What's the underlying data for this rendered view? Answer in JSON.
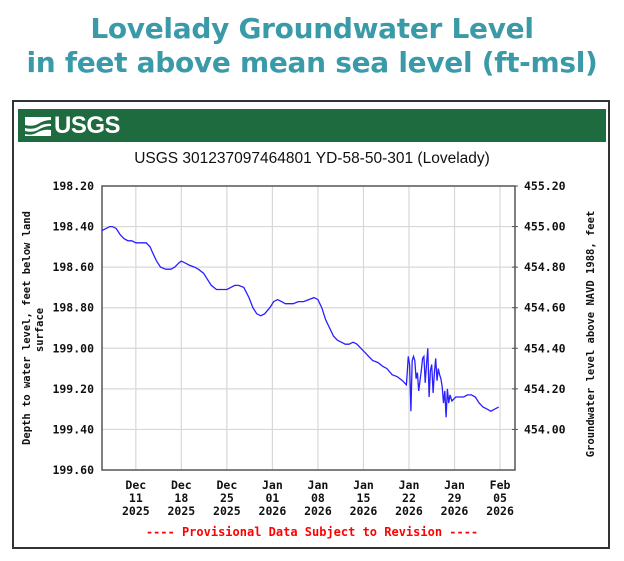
{
  "header": {
    "line1": "Lovelady Groundwater Level",
    "line2": "in feet above mean sea level (ft-msl)"
  },
  "banner": {
    "logo_text": "USGS",
    "color": "#1f6b40"
  },
  "colors": {
    "header": "#3a9aa8",
    "series": "#2a1fff",
    "provisional": "#ff0000",
    "grid": "#d8d8d8"
  },
  "chart_data": {
    "type": "line",
    "title": "USGS 301237097464801 YD-58-50-301 (Lovelady)",
    "ylabel": "Depth to water level, feet below land surface",
    "ylabel_lines": [
      "Depth to water level, feet below land",
      "surface"
    ],
    "y2label": "Groundwater level above NAVD 1988, feet",
    "ylim": [
      198.2,
      199.6
    ],
    "y_inverted": true,
    "yticks": [
      "198.20",
      "198.40",
      "198.60",
      "198.80",
      "199.00",
      "199.20",
      "199.40",
      "199.60"
    ],
    "y2lim": [
      455.2,
      453.8
    ],
    "y2ticks": [
      "455.20",
      "455.00",
      "454.80",
      "454.60",
      "454.40",
      "454.20",
      "454.00"
    ],
    "xlim_days_from_dec11": [
      -5.2,
      58.3
    ],
    "xticks": [
      {
        "line1": "Dec",
        "line2": "11",
        "line3": "2025",
        "day": 0
      },
      {
        "line1": "Dec",
        "line2": "18",
        "line3": "2025",
        "day": 7
      },
      {
        "line1": "Dec",
        "line2": "25",
        "line3": "2025",
        "day": 14
      },
      {
        "line1": "Jan",
        "line2": "01",
        "line3": "2026",
        "day": 21
      },
      {
        "line1": "Jan",
        "line2": "08",
        "line3": "2026",
        "day": 28
      },
      {
        "line1": "Jan",
        "line2": "15",
        "line3": "2026",
        "day": 35
      },
      {
        "line1": "Jan",
        "line2": "22",
        "line3": "2026",
        "day": 42
      },
      {
        "line1": "Jan",
        "line2": "29",
        "line3": "2026",
        "day": 49
      },
      {
        "line1": "Feb",
        "line2": "05",
        "line3": "2026",
        "day": 56
      }
    ],
    "grid": true,
    "footnote": "---- Provisional Data Subject to Revision ----",
    "series": [
      {
        "name": "Depth to water level",
        "x_days_from_dec11": [
          -5.2,
          -4.6,
          -4.0,
          -3.6,
          -3.0,
          -2.4,
          -1.8,
          -1.2,
          -0.6,
          0.0,
          0.8,
          1.6,
          2.2,
          2.6,
          3.2,
          3.8,
          4.6,
          5.4,
          6.0,
          6.6,
          7.0,
          7.6,
          8.2,
          9.0,
          9.6,
          10.4,
          11.0,
          11.6,
          12.4,
          13.2,
          14.0,
          14.6,
          15.2,
          15.8,
          16.6,
          17.4,
          18.0,
          18.6,
          19.2,
          19.8,
          20.6,
          21.2,
          21.8,
          22.4,
          23.0,
          23.6,
          24.2,
          25.0,
          25.8,
          26.6,
          27.4,
          28.0,
          28.6,
          29.2,
          29.8,
          30.4,
          31.0,
          31.6,
          32.2,
          32.8,
          33.4,
          34.0,
          34.6,
          35.2,
          35.8,
          36.4,
          37.2,
          38.0,
          38.6,
          39.4,
          40.2,
          41.0,
          41.6,
          41.9,
          42.1,
          42.3,
          42.5,
          42.7,
          42.9,
          43.1,
          43.3,
          43.5,
          43.7,
          43.9,
          44.1,
          44.3,
          44.5,
          44.7,
          44.9,
          45.1,
          45.3,
          45.5,
          45.7,
          45.9,
          46.1,
          46.3,
          46.5,
          46.7,
          46.9,
          47.1,
          47.3,
          47.5,
          47.7,
          47.9,
          48.1,
          48.3,
          48.6,
          49.2,
          49.8,
          50.4,
          51.0,
          51.6,
          52.2,
          52.8,
          53.4,
          54.0,
          54.6,
          55.2,
          55.8
        ],
        "values": [
          198.42,
          198.41,
          198.4,
          198.4,
          198.41,
          198.44,
          198.46,
          198.47,
          198.47,
          198.48,
          198.48,
          198.48,
          198.5,
          198.53,
          198.57,
          198.6,
          198.61,
          198.61,
          198.6,
          198.58,
          198.57,
          198.58,
          198.59,
          198.6,
          198.61,
          198.63,
          198.66,
          198.69,
          198.71,
          198.71,
          198.71,
          198.7,
          198.69,
          198.69,
          198.7,
          198.75,
          198.8,
          198.83,
          198.84,
          198.83,
          198.8,
          198.77,
          198.76,
          198.77,
          198.78,
          198.78,
          198.78,
          198.77,
          198.77,
          198.76,
          198.75,
          198.76,
          198.8,
          198.86,
          198.9,
          198.94,
          198.96,
          198.97,
          198.98,
          198.98,
          198.97,
          198.98,
          199.0,
          199.02,
          199.04,
          199.06,
          199.07,
          199.09,
          199.1,
          199.13,
          199.14,
          199.16,
          199.18,
          199.04,
          199.08,
          199.31,
          199.06,
          199.04,
          199.06,
          199.15,
          199.12,
          199.21,
          199.16,
          199.11,
          199.05,
          199.04,
          199.17,
          199.08,
          199.0,
          199.24,
          199.11,
          199.08,
          199.22,
          199.12,
          199.05,
          199.16,
          199.1,
          199.13,
          199.15,
          199.19,
          199.27,
          199.21,
          199.34,
          199.2,
          199.27,
          199.23,
          199.26,
          199.24,
          199.24,
          199.24,
          199.23,
          199.23,
          199.24,
          199.27,
          199.29,
          199.3,
          199.31,
          199.3,
          199.29
        ]
      }
    ]
  }
}
